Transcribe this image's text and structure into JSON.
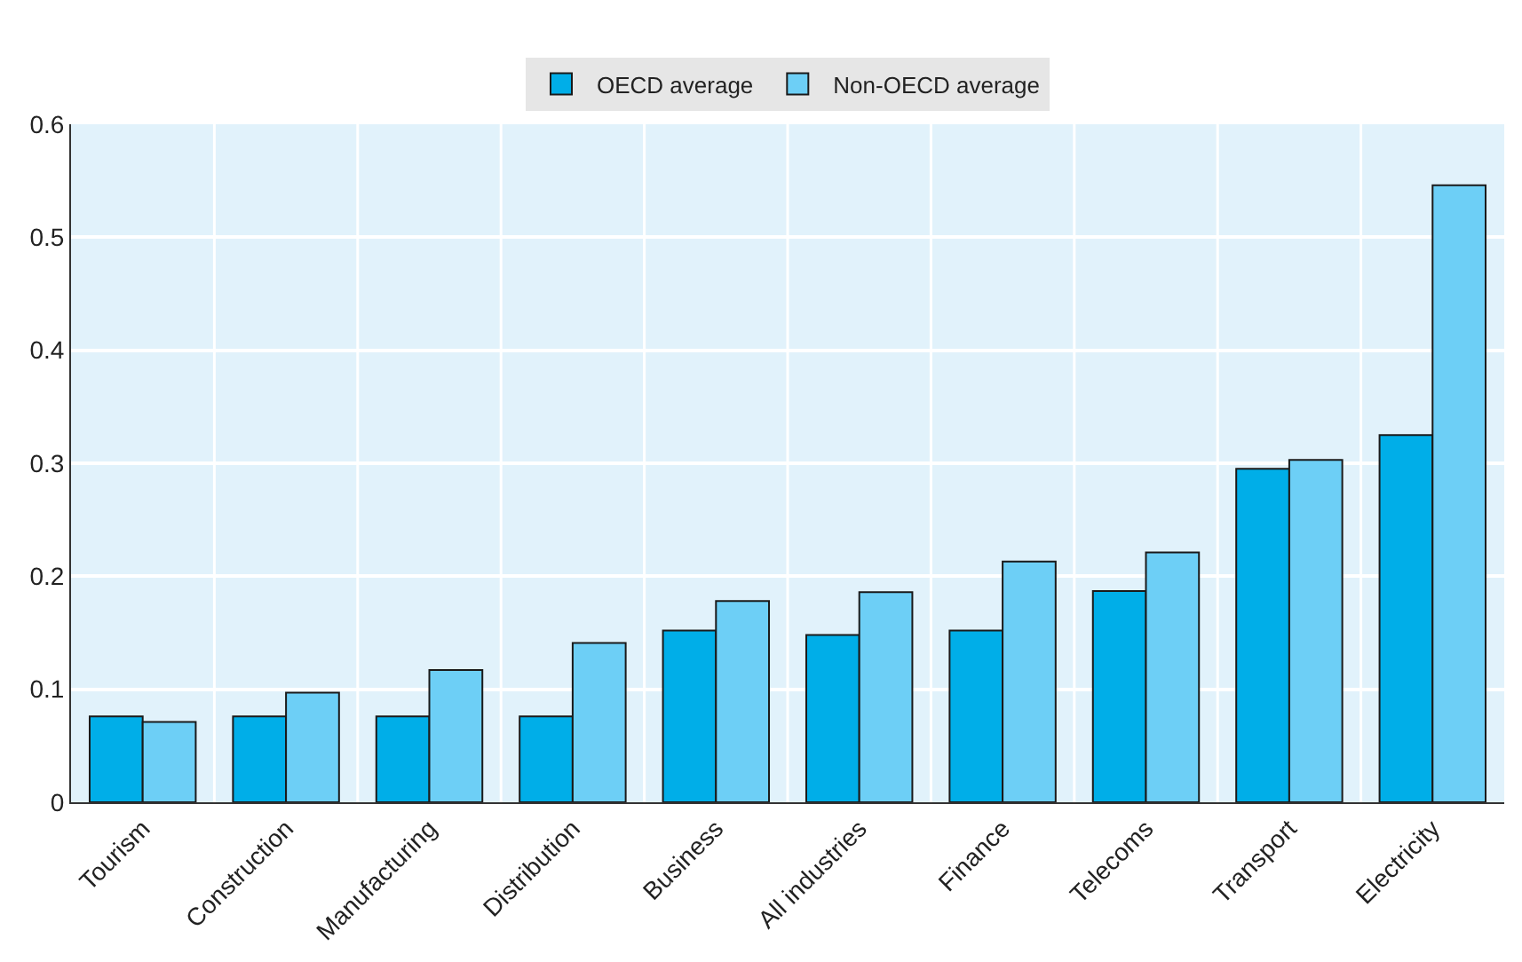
{
  "chart_data": {
    "type": "bar",
    "categories": [
      "Tourism",
      "Construction",
      "Manufacturing",
      "Distribution",
      "Business",
      "All industries",
      "Finance",
      "Telecoms",
      "Transport",
      "Electricity"
    ],
    "series": [
      {
        "name": "OECD average",
        "color": "#00aee8",
        "values": [
          0.076,
          0.076,
          0.076,
          0.076,
          0.152,
          0.148,
          0.152,
          0.187,
          0.295,
          0.325
        ]
      },
      {
        "name": "Non-OECD average",
        "color": "#6dcff6",
        "values": [
          0.071,
          0.097,
          0.117,
          0.141,
          0.178,
          0.186,
          0.213,
          0.221,
          0.303,
          0.546
        ]
      }
    ],
    "ylim": [
      0,
      0.6
    ],
    "yticks": [
      0,
      0.1,
      0.2,
      0.3,
      0.4,
      0.5,
      0.6
    ],
    "grid": true,
    "legend": "top"
  }
}
